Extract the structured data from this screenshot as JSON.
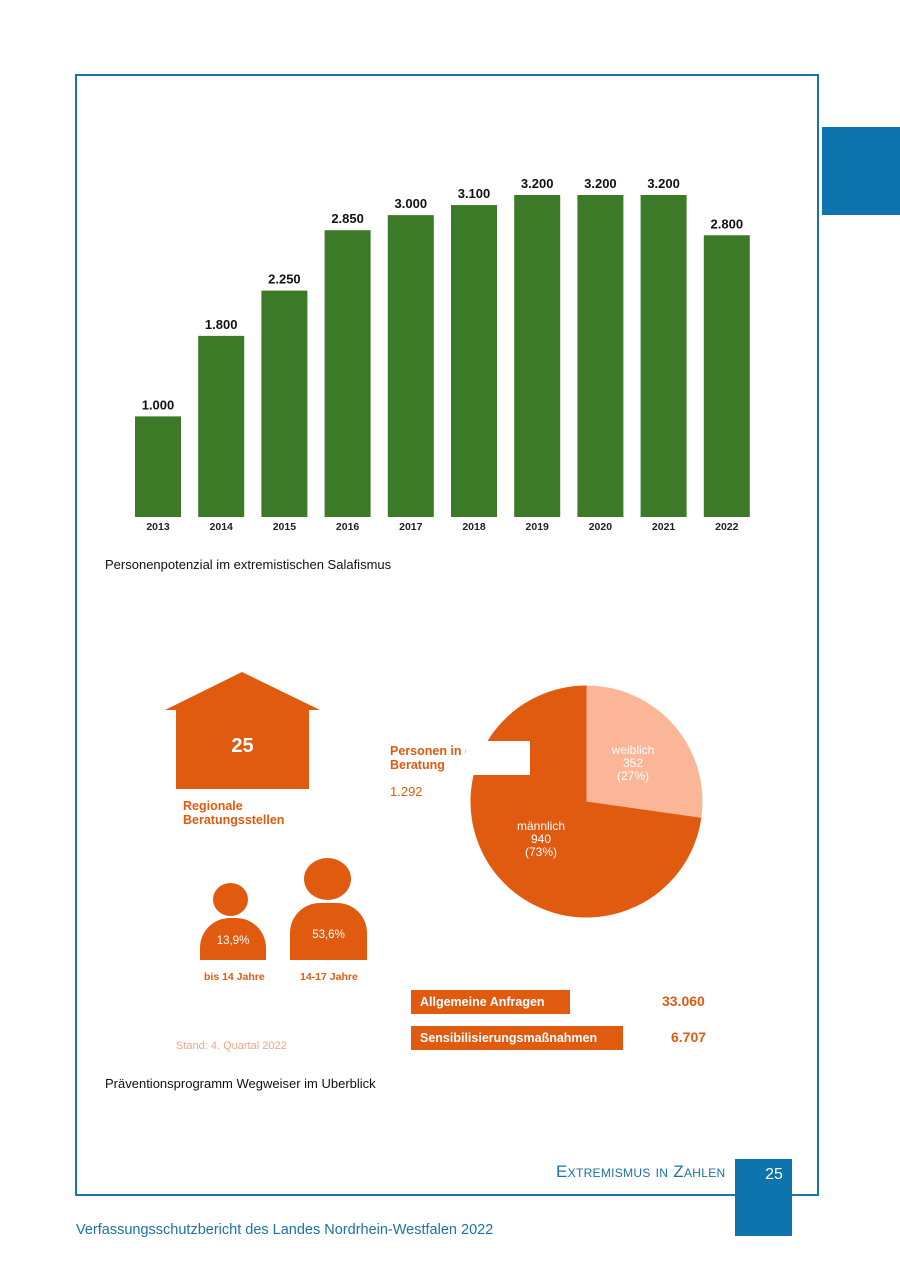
{
  "chart_data": [
    {
      "type": "bar",
      "categories": [
        "2013",
        "2014",
        "2015",
        "2016",
        "2017",
        "2018",
        "2019",
        "2020",
        "2021",
        "2022"
      ],
      "values": [
        1000,
        1800,
        2250,
        2850,
        3000,
        3100,
        3200,
        3200,
        3200,
        2800
      ],
      "value_labels": [
        "1.000",
        "1.800",
        "2.250",
        "2.850",
        "3.000",
        "3.100",
        "3.200",
        "3.200",
        "3.200",
        "2.800"
      ],
      "bar_color": "#3d7a27",
      "title": "",
      "xlabel": "",
      "ylabel": "",
      "ylim": [
        0,
        3200
      ],
      "grid": false
    },
    {
      "type": "pie",
      "title": "Personen in der Beratung",
      "total": "1.292",
      "slices": [
        {
          "label": "weiblich",
          "value": 352,
          "value_label": "352",
          "percent_label": "(27%)",
          "color": "#fbb697"
        },
        {
          "label": "männlich",
          "value": 940,
          "value_label": "940",
          "percent_label": "(73%)",
          "color": "#e05a10"
        }
      ]
    },
    {
      "type": "bar",
      "orientation": "horizontal",
      "categories": [
        "Allgemeine Anfragen",
        "Sensibilisierungsmaßnahmen"
      ],
      "values": [
        33060,
        6707
      ],
      "value_labels": [
        "33.060",
        "6.707"
      ],
      "color": "#e05a10"
    }
  ],
  "infographic": {
    "house_value": "25",
    "house_label_line1": "Regionale",
    "house_label_line2": "Beratungsstellen",
    "pie_label_line1": "Personen in der",
    "pie_label_line2": "Beratung",
    "pie_total": "1.292",
    "pie_female": {
      "line1": "weiblich",
      "line2": "352",
      "line3": "(27%)"
    },
    "pie_male": {
      "line1": "männlich",
      "line2": "940",
      "line3": "(73%)"
    },
    "age_groups": [
      {
        "percent": "13,9%",
        "label": "bis 14 Jahre"
      },
      {
        "percent": "53,6%",
        "label": "14-17 Jahre"
      }
    ],
    "requests": [
      {
        "label": "Allgemeine Anfragen",
        "value": "33.060"
      },
      {
        "label": "Sensibilisierungsmaßnahmen",
        "value": "6.707"
      }
    ],
    "stand": "Stand: 4. Quartal 2022"
  },
  "captions": {
    "chart1": "Personenpotenzial im extremistischen Salafismus",
    "chart2": "Präventionsprogramm Wegweiser im Uberblick"
  },
  "page": {
    "section_title": "Extremismus in Zahlen",
    "page_number": "25",
    "footer": "Verfassungsschutzbericht des Landes Nordrhein-Westfalen 2022"
  },
  "colors": {
    "accent_blue": "#0d74ad",
    "bar_green": "#3d7a27",
    "orange": "#e05a10",
    "light_orange": "#fbb697"
  }
}
